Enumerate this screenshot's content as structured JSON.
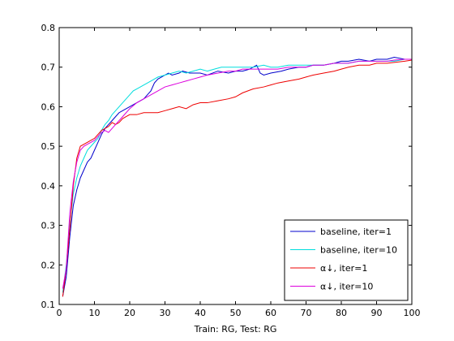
{
  "chart_data": {
    "type": "line",
    "title": "",
    "xlabel": "Train: RG, Test: RG",
    "ylabel": "",
    "xlim": [
      0,
      100
    ],
    "ylim": [
      0.1,
      0.8
    ],
    "xticks": [
      "0",
      "10",
      "20",
      "30",
      "40",
      "50",
      "60",
      "70",
      "80",
      "90",
      "100"
    ],
    "yticks": [
      "0.1",
      "0.2",
      "0.3",
      "0.4",
      "0.5",
      "0.6",
      "0.7",
      "0.8"
    ],
    "grid": false,
    "legend": {
      "placement": "bottom-right"
    },
    "series": [
      {
        "name": "baseline, iter=1",
        "color": "#0000cc",
        "points": [
          [
            1,
            0.12
          ],
          [
            2,
            0.17
          ],
          [
            3,
            0.27
          ],
          [
            4,
            0.35
          ],
          [
            5,
            0.39
          ],
          [
            6,
            0.42
          ],
          [
            7,
            0.44
          ],
          [
            8,
            0.46
          ],
          [
            9,
            0.47
          ],
          [
            10,
            0.49
          ],
          [
            11,
            0.51
          ],
          [
            12,
            0.53
          ],
          [
            13,
            0.545
          ],
          [
            14,
            0.555
          ],
          [
            15,
            0.565
          ],
          [
            16,
            0.575
          ],
          [
            17,
            0.585
          ],
          [
            18,
            0.59
          ],
          [
            20,
            0.6
          ],
          [
            22,
            0.61
          ],
          [
            24,
            0.62
          ],
          [
            25,
            0.63
          ],
          [
            26,
            0.64
          ],
          [
            27,
            0.66
          ],
          [
            28,
            0.67
          ],
          [
            29,
            0.675
          ],
          [
            30,
            0.68
          ],
          [
            31,
            0.685
          ],
          [
            32,
            0.68
          ],
          [
            34,
            0.685
          ],
          [
            35,
            0.69
          ],
          [
            37,
            0.685
          ],
          [
            40,
            0.685
          ],
          [
            42,
            0.68
          ],
          [
            45,
            0.69
          ],
          [
            48,
            0.685
          ],
          [
            50,
            0.69
          ],
          [
            52,
            0.69
          ],
          [
            54,
            0.695
          ],
          [
            55,
            0.7
          ],
          [
            56,
            0.705
          ],
          [
            57,
            0.685
          ],
          [
            58,
            0.68
          ],
          [
            60,
            0.685
          ],
          [
            63,
            0.69
          ],
          [
            65,
            0.695
          ],
          [
            68,
            0.7
          ],
          [
            70,
            0.7
          ],
          [
            72,
            0.705
          ],
          [
            75,
            0.705
          ],
          [
            78,
            0.71
          ],
          [
            80,
            0.715
          ],
          [
            82,
            0.715
          ],
          [
            85,
            0.72
          ],
          [
            88,
            0.715
          ],
          [
            90,
            0.72
          ],
          [
            93,
            0.72
          ],
          [
            95,
            0.725
          ],
          [
            98,
            0.72
          ],
          [
            100,
            0.72
          ]
        ]
      },
      {
        "name": "baseline, iter=10",
        "color": "#00dddd",
        "points": [
          [
            1,
            0.13
          ],
          [
            2,
            0.2
          ],
          [
            3,
            0.3
          ],
          [
            4,
            0.38
          ],
          [
            5,
            0.42
          ],
          [
            6,
            0.45
          ],
          [
            7,
            0.47
          ],
          [
            8,
            0.49
          ],
          [
            9,
            0.5
          ],
          [
            10,
            0.51
          ],
          [
            11,
            0.52
          ],
          [
            12,
            0.54
          ],
          [
            13,
            0.555
          ],
          [
            14,
            0.565
          ],
          [
            15,
            0.58
          ],
          [
            16,
            0.59
          ],
          [
            17,
            0.6
          ],
          [
            18,
            0.61
          ],
          [
            19,
            0.62
          ],
          [
            20,
            0.63
          ],
          [
            21,
            0.64
          ],
          [
            22,
            0.645
          ],
          [
            24,
            0.655
          ],
          [
            26,
            0.665
          ],
          [
            28,
            0.675
          ],
          [
            30,
            0.68
          ],
          [
            32,
            0.685
          ],
          [
            34,
            0.69
          ],
          [
            36,
            0.685
          ],
          [
            38,
            0.69
          ],
          [
            40,
            0.695
          ],
          [
            42,
            0.69
          ],
          [
            44,
            0.695
          ],
          [
            46,
            0.7
          ],
          [
            48,
            0.7
          ],
          [
            50,
            0.7
          ],
          [
            52,
            0.7
          ],
          [
            55,
            0.7
          ],
          [
            58,
            0.705
          ],
          [
            60,
            0.7
          ],
          [
            62,
            0.7
          ],
          [
            65,
            0.705
          ],
          [
            68,
            0.705
          ],
          [
            70,
            0.705
          ],
          [
            72,
            0.705
          ],
          [
            75,
            0.705
          ],
          [
            78,
            0.71
          ],
          [
            80,
            0.71
          ],
          [
            82,
            0.71
          ],
          [
            85,
            0.715
          ],
          [
            88,
            0.715
          ],
          [
            90,
            0.715
          ],
          [
            93,
            0.715
          ],
          [
            95,
            0.715
          ],
          [
            98,
            0.72
          ],
          [
            100,
            0.72
          ]
        ]
      },
      {
        "name": "α↓, iter=1",
        "color": "#ee0000",
        "points": [
          [
            1,
            0.12
          ],
          [
            2,
            0.19
          ],
          [
            3,
            0.29
          ],
          [
            4,
            0.4
          ],
          [
            5,
            0.47
          ],
          [
            6,
            0.5
          ],
          [
            7,
            0.505
          ],
          [
            8,
            0.51
          ],
          [
            9,
            0.515
          ],
          [
            10,
            0.52
          ],
          [
            11,
            0.53
          ],
          [
            12,
            0.54
          ],
          [
            13,
            0.545
          ],
          [
            14,
            0.55
          ],
          [
            15,
            0.56
          ],
          [
            16,
            0.555
          ],
          [
            17,
            0.56
          ],
          [
            18,
            0.57
          ],
          [
            19,
            0.575
          ],
          [
            20,
            0.58
          ],
          [
            22,
            0.58
          ],
          [
            24,
            0.585
          ],
          [
            26,
            0.585
          ],
          [
            28,
            0.585
          ],
          [
            30,
            0.59
          ],
          [
            32,
            0.595
          ],
          [
            34,
            0.6
          ],
          [
            36,
            0.595
          ],
          [
            38,
            0.605
          ],
          [
            40,
            0.61
          ],
          [
            42,
            0.61
          ],
          [
            45,
            0.615
          ],
          [
            48,
            0.62
          ],
          [
            50,
            0.625
          ],
          [
            52,
            0.635
          ],
          [
            55,
            0.645
          ],
          [
            58,
            0.65
          ],
          [
            60,
            0.655
          ],
          [
            62,
            0.66
          ],
          [
            65,
            0.665
          ],
          [
            68,
            0.67
          ],
          [
            70,
            0.675
          ],
          [
            72,
            0.68
          ],
          [
            75,
            0.685
          ],
          [
            78,
            0.69
          ],
          [
            80,
            0.695
          ],
          [
            82,
            0.7
          ],
          [
            85,
            0.705
          ],
          [
            88,
            0.705
          ],
          [
            90,
            0.71
          ],
          [
            93,
            0.71
          ],
          [
            95,
            0.712
          ],
          [
            98,
            0.715
          ],
          [
            100,
            0.718
          ]
        ]
      },
      {
        "name": "α↓, iter=10",
        "color": "#dd00dd",
        "points": [
          [
            1,
            0.14
          ],
          [
            2,
            0.19
          ],
          [
            3,
            0.33
          ],
          [
            4,
            0.41
          ],
          [
            5,
            0.46
          ],
          [
            6,
            0.49
          ],
          [
            7,
            0.5
          ],
          [
            8,
            0.505
          ],
          [
            9,
            0.51
          ],
          [
            10,
            0.515
          ],
          [
            11,
            0.525
          ],
          [
            12,
            0.535
          ],
          [
            13,
            0.54
          ],
          [
            14,
            0.535
          ],
          [
            15,
            0.545
          ],
          [
            16,
            0.555
          ],
          [
            17,
            0.565
          ],
          [
            18,
            0.575
          ],
          [
            19,
            0.585
          ],
          [
            20,
            0.595
          ],
          [
            22,
            0.61
          ],
          [
            24,
            0.62
          ],
          [
            26,
            0.63
          ],
          [
            28,
            0.64
          ],
          [
            30,
            0.65
          ],
          [
            32,
            0.655
          ],
          [
            34,
            0.66
          ],
          [
            36,
            0.665
          ],
          [
            38,
            0.67
          ],
          [
            40,
            0.675
          ],
          [
            42,
            0.68
          ],
          [
            45,
            0.685
          ],
          [
            48,
            0.69
          ],
          [
            50,
            0.69
          ],
          [
            52,
            0.695
          ],
          [
            55,
            0.695
          ],
          [
            58,
            0.695
          ],
          [
            60,
            0.695
          ],
          [
            62,
            0.695
          ],
          [
            65,
            0.7
          ],
          [
            68,
            0.7
          ],
          [
            70,
            0.7
          ],
          [
            72,
            0.705
          ],
          [
            75,
            0.705
          ],
          [
            78,
            0.71
          ],
          [
            80,
            0.71
          ],
          [
            82,
            0.71
          ],
          [
            85,
            0.715
          ],
          [
            88,
            0.715
          ],
          [
            90,
            0.715
          ],
          [
            93,
            0.715
          ],
          [
            95,
            0.718
          ],
          [
            98,
            0.72
          ],
          [
            100,
            0.72
          ]
        ]
      }
    ]
  }
}
